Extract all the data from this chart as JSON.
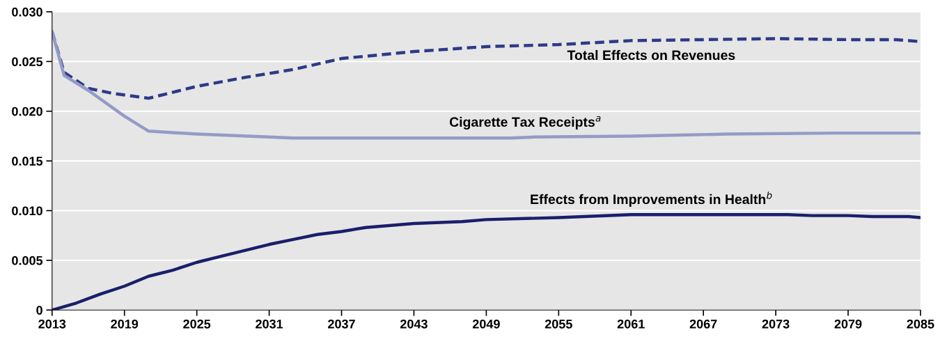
{
  "chart_data": {
    "type": "line",
    "xlim": [
      2013,
      2085
    ],
    "xticks": [
      2013,
      2019,
      2025,
      2031,
      2037,
      2043,
      2049,
      2055,
      2061,
      2067,
      2073,
      2079,
      2085
    ],
    "ylim": [
      0,
      0.03
    ],
    "yticks": [
      0,
      0.005,
      {
        "value": 0.01,
        "label": "0.010"
      },
      0.015,
      {
        "value": 0.02,
        "label": "0.020"
      },
      0.025,
      {
        "value": 0.03,
        "label": "0.030"
      }
    ],
    "grid": "y",
    "legend": false,
    "series": [
      {
        "name": "Total Effects on Revenues",
        "color": "#2e3a87",
        "line_style": "dashed",
        "x": [
          2013,
          2014,
          2016,
          2018,
          2021,
          2025,
          2029,
          2033,
          2037,
          2043,
          2049,
          2055,
          2061,
          2067,
          2073,
          2079,
          2083,
          2085
        ],
        "values": [
          0.028,
          0.0239,
          0.0223,
          0.0218,
          0.0213,
          0.0225,
          0.0234,
          0.0242,
          0.0253,
          0.026,
          0.0265,
          0.0267,
          0.0271,
          0.0272,
          0.0273,
          0.0272,
          0.0272,
          0.027
        ]
      },
      {
        "name": "Cigarette Tax Receipts$^{a}$",
        "color": "#949bc6",
        "line_style": "solid",
        "x": [
          2013,
          2014,
          2016,
          2019,
          2021,
          2025,
          2031,
          2033,
          2051,
          2053,
          2061,
          2065,
          2069,
          2078,
          2085
        ],
        "values": [
          0.028,
          0.0236,
          0.0221,
          0.0195,
          0.018,
          0.0177,
          0.0174,
          0.0173,
          0.0173,
          0.0174,
          0.0175,
          0.0176,
          0.0177,
          0.0178,
          0.0178
        ]
      },
      {
        "name": "Effects from Improvements in Health$^{b}$",
        "color": "#1a1f6b",
        "line_style": "solid",
        "x": [
          2013,
          2015,
          2017,
          2019,
          2021,
          2023,
          2025,
          2027,
          2029,
          2031,
          2033,
          2035,
          2037,
          2039,
          2043,
          2047,
          2049,
          2055,
          2061,
          2074,
          2076,
          2079,
          2081,
          2084,
          2085
        ],
        "values": [
          0,
          0.0007,
          0.0016,
          0.0024,
          0.0034,
          0.004,
          0.0048,
          0.0054,
          0.006,
          0.0066,
          0.0071,
          0.0076,
          0.0079,
          0.0083,
          0.0087,
          0.0089,
          0.0091,
          0.0093,
          0.0096,
          0.0096,
          0.0095,
          0.0095,
          0.0094,
          0.0094,
          0.0093
        ]
      }
    ]
  }
}
